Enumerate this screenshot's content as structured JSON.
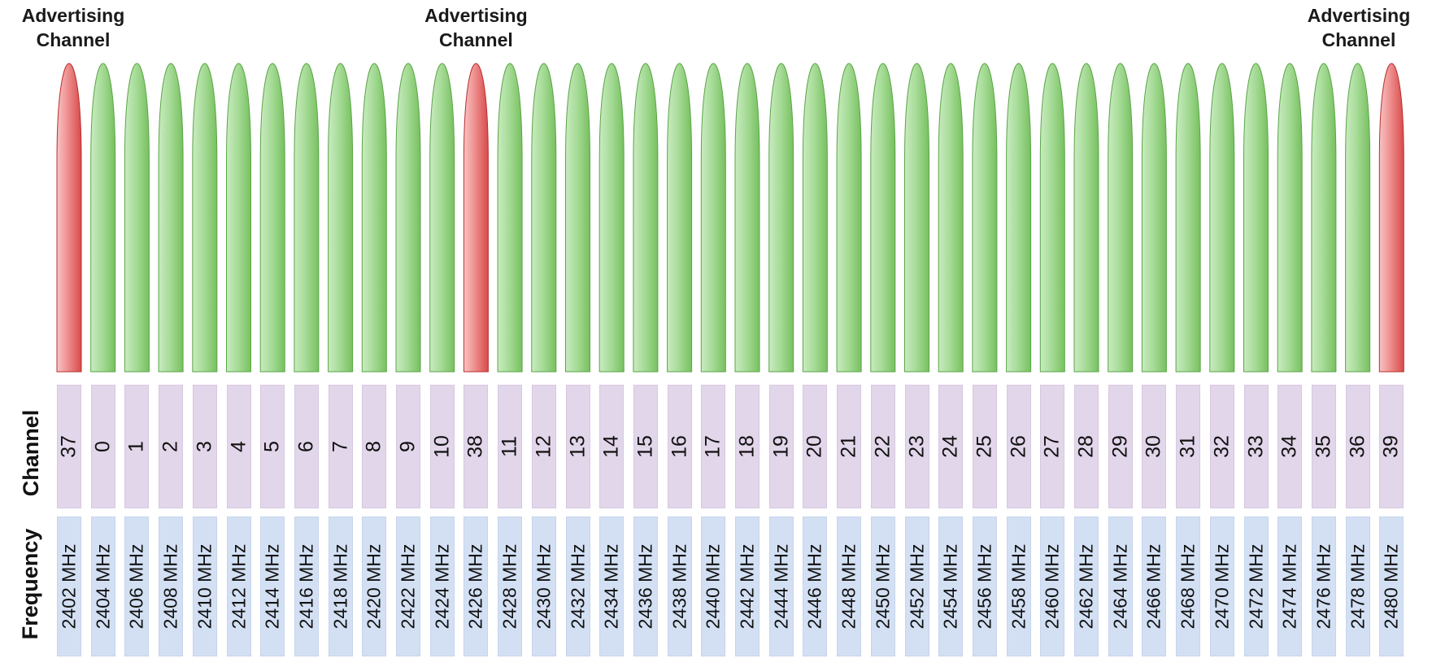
{
  "labels": {
    "advertising": "Advertising\nChannel",
    "channel_row": "Channel",
    "frequency_row": "Frequency"
  },
  "colors": {
    "advertising_fill": "#e86a6a",
    "data_fill": "#92d080",
    "channel_cell": "#e2d6ea",
    "frequency_cell": "#d3e0f4"
  },
  "channels": [
    {
      "channel": "37",
      "frequency": "2402 MHz",
      "type": "advertising"
    },
    {
      "channel": "0",
      "frequency": "2404 MHz",
      "type": "data"
    },
    {
      "channel": "1",
      "frequency": "2406 MHz",
      "type": "data"
    },
    {
      "channel": "2",
      "frequency": "2408 MHz",
      "type": "data"
    },
    {
      "channel": "3",
      "frequency": "2410 MHz",
      "type": "data"
    },
    {
      "channel": "4",
      "frequency": "2412 MHz",
      "type": "data"
    },
    {
      "channel": "5",
      "frequency": "2414 MHz",
      "type": "data"
    },
    {
      "channel": "6",
      "frequency": "2416 MHz",
      "type": "data"
    },
    {
      "channel": "7",
      "frequency": "2418 MHz",
      "type": "data"
    },
    {
      "channel": "8",
      "frequency": "2420 MHz",
      "type": "data"
    },
    {
      "channel": "9",
      "frequency": "2422 MHz",
      "type": "data"
    },
    {
      "channel": "10",
      "frequency": "2424 MHz",
      "type": "data"
    },
    {
      "channel": "38",
      "frequency": "2426 MHz",
      "type": "advertising"
    },
    {
      "channel": "11",
      "frequency": "2428 MHz",
      "type": "data"
    },
    {
      "channel": "12",
      "frequency": "2430 MHz",
      "type": "data"
    },
    {
      "channel": "13",
      "frequency": "2432 MHz",
      "type": "data"
    },
    {
      "channel": "14",
      "frequency": "2434 MHz",
      "type": "data"
    },
    {
      "channel": "15",
      "frequency": "2436 MHz",
      "type": "data"
    },
    {
      "channel": "16",
      "frequency": "2438 MHz",
      "type": "data"
    },
    {
      "channel": "17",
      "frequency": "2440 MHz",
      "type": "data"
    },
    {
      "channel": "18",
      "frequency": "2442 MHz",
      "type": "data"
    },
    {
      "channel": "19",
      "frequency": "2444 MHz",
      "type": "data"
    },
    {
      "channel": "20",
      "frequency": "2446 MHz",
      "type": "data"
    },
    {
      "channel": "21",
      "frequency": "2448 MHz",
      "type": "data"
    },
    {
      "channel": "22",
      "frequency": "2450 MHz",
      "type": "data"
    },
    {
      "channel": "23",
      "frequency": "2452 MHz",
      "type": "data"
    },
    {
      "channel": "24",
      "frequency": "2454 MHz",
      "type": "data"
    },
    {
      "channel": "25",
      "frequency": "2456 MHz",
      "type": "data"
    },
    {
      "channel": "26",
      "frequency": "2458 MHz",
      "type": "data"
    },
    {
      "channel": "27",
      "frequency": "2460 MHz",
      "type": "data"
    },
    {
      "channel": "28",
      "frequency": "2462 MHz",
      "type": "data"
    },
    {
      "channel": "29",
      "frequency": "2464 MHz",
      "type": "data"
    },
    {
      "channel": "30",
      "frequency": "2466 MHz",
      "type": "data"
    },
    {
      "channel": "31",
      "frequency": "2468 MHz",
      "type": "data"
    },
    {
      "channel": "32",
      "frequency": "2470 MHz",
      "type": "data"
    },
    {
      "channel": "33",
      "frequency": "2472 MHz",
      "type": "data"
    },
    {
      "channel": "34",
      "frequency": "2474 MHz",
      "type": "data"
    },
    {
      "channel": "35",
      "frequency": "2476 MHz",
      "type": "data"
    },
    {
      "channel": "36",
      "frequency": "2478 MHz",
      "type": "data"
    },
    {
      "channel": "39",
      "frequency": "2480 MHz",
      "type": "advertising"
    }
  ]
}
